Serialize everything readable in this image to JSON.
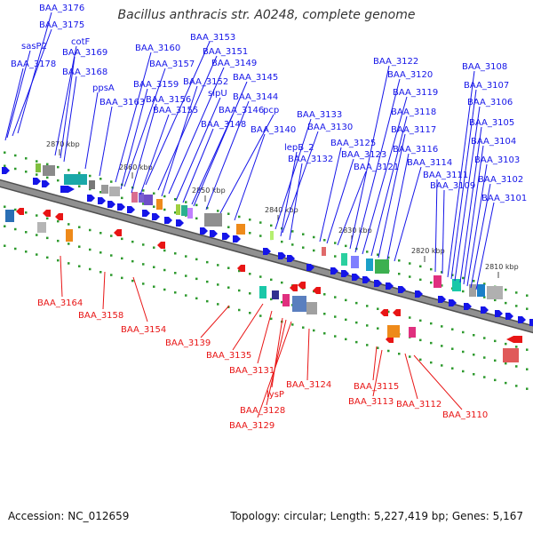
{
  "header": {
    "title": "Bacillus anthracis str. A0248, complete genome"
  },
  "footer": {
    "accession": "Accession: NC_012659",
    "summary": "Topology: circular; Length: 5,227,419 bp; Genes: 5,167"
  },
  "colors": {
    "forward_strand": "#1515e8",
    "reverse_strand": "#e81515",
    "backbone": "#909090",
    "tick": "#2e9a2e"
  },
  "scale_labels": [
    "2870 kbp",
    "2860 kbp",
    "2850 kbp",
    "2840 kbp",
    "2830 kbp",
    "2820 kbp",
    "2810 kbp"
  ],
  "genes_forward": [
    "BAA_3176",
    "BAA_3175",
    "sasP2",
    "BAA_3178",
    "cotF",
    "BAA_3169",
    "BAA_3168",
    "ppsA",
    "BAA_3163",
    "BAA_3160",
    "BAA_3153",
    "BAA_3151",
    "BAA_3157",
    "BAA_3149",
    "BAA_3159",
    "BAA_3152",
    "BAA_3145",
    "BAA_3156",
    "sipU",
    "BAA_3144",
    "BAA_3155",
    "BAA_3146",
    "pcp",
    "BAA_3148",
    "BAA_3140",
    "BAA_3133",
    "BAA_3130",
    "lepB_2",
    "BAA_3132",
    "BAA_3125",
    "BAA_3123",
    "BAA_3121",
    "BAA_3122",
    "BAA_3120",
    "BAA_3119",
    "BAA_3118",
    "BAA_3117",
    "BAA_3116",
    "BAA_3114",
    "BAA_3111",
    "BAA_3109",
    "BAA_3108",
    "BAA_3107",
    "BAA_3106",
    "BAA_3105",
    "BAA_3104",
    "BAA_3103",
    "BAA_3102",
    "BAA_3101"
  ],
  "genes_reverse": [
    "BAA_3164",
    "BAA_3158",
    "BAA_3154",
    "BAA_3139",
    "BAA_3135",
    "BAA_3131",
    "lysP",
    "BAA_3128",
    "BAA_3129",
    "BAA_3124",
    "BAA_3115",
    "BAA_3113",
    "BAA_3112",
    "BAA_3110"
  ]
}
